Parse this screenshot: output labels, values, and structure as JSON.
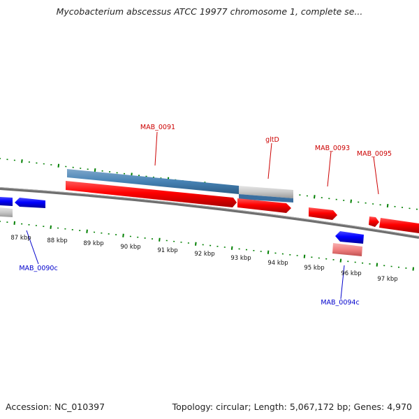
{
  "title": "Mycobacterium abscessus ATCC 19977 chromosome 1, complete se...",
  "footer": {
    "accession": "Accession: NC_010397",
    "summary": "Topology: circular; Length: 5,067,172 bp; Genes: 4,970"
  },
  "colors": {
    "forward_gene": "#ff0000",
    "forward_gene_pale": "#f08080",
    "reverse_gene": "#0000ff",
    "cds_blue": "#4682b4",
    "pseudo_gray": "#c8c8c8",
    "backbone": "#808080",
    "ticks": "#008000",
    "forward_label": "#cc0000",
    "reverse_label": "#0000cc"
  },
  "scale_labels": [
    "87 kbp",
    "88 kbp",
    "89 kbp",
    "90 kbp",
    "91 kbp",
    "92 kbp",
    "93 kbp",
    "94 kbp",
    "95 kbp",
    "96 kbp",
    "97 kbp"
  ],
  "gene_labels": [
    {
      "name": "MAB_0091",
      "strand": "forward"
    },
    {
      "name": "gltD",
      "strand": "forward"
    },
    {
      "name": "MAB_0093",
      "strand": "forward"
    },
    {
      "name": "MAB_0095",
      "strand": "forward"
    },
    {
      "name": "MAB_0090c",
      "strand": "reverse"
    },
    {
      "name": "MAB_0094c",
      "strand": "reverse"
    }
  ]
}
